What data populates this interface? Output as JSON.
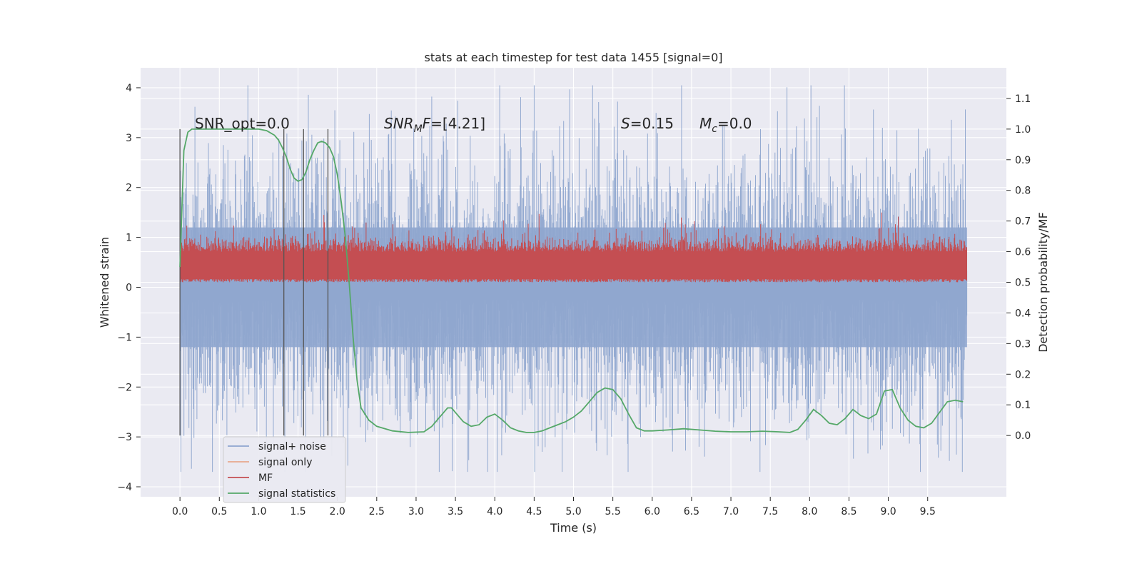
{
  "chart_data": {
    "type": "line",
    "title": "stats at each timestep for test data 1455 [signal=0]",
    "xlabel": "Time (s)",
    "ylabel": "Whitened strain",
    "ylabel_right": "Detection probability/MF",
    "xlim": [
      -0.5,
      10.5
    ],
    "ylim": [
      -4.2,
      4.4
    ],
    "ylim_right": [
      -0.2,
      1.2
    ],
    "x_ticks": [
      0.0,
      0.5,
      1.0,
      1.5,
      2.0,
      2.5,
      3.0,
      3.5,
      4.0,
      4.5,
      5.0,
      5.5,
      6.0,
      6.5,
      7.0,
      7.5,
      8.0,
      8.5,
      9.0,
      9.5
    ],
    "y_ticks": [
      -4,
      -3,
      -2,
      -1,
      0,
      1,
      2,
      3,
      4
    ],
    "y_ticks_right": [
      0.0,
      0.1,
      0.2,
      0.3,
      0.4,
      0.5,
      0.6,
      0.7,
      0.8,
      0.9,
      1.0,
      1.1
    ],
    "grid": true,
    "legend_position": "lower-left",
    "annotations": [
      "SNR_opt=0.0",
      "SNR_MF=[4.21]",
      "S=0.15",
      "M_c=0.0"
    ],
    "vertical_markers": [
      0.0,
      1.32,
      1.57,
      1.88
    ],
    "series": [
      {
        "name": "signal+ noise",
        "color": "#8fa6cf",
        "kind": "noise",
        "x_range": [
          0.0,
          10.0
        ],
        "y_range": [
          -3.7,
          4.05
        ]
      },
      {
        "name": "signal only",
        "color": "#e8a88c",
        "kind": "flat",
        "values": []
      },
      {
        "name": "MF",
        "color": "#c44e52",
        "kind": "band",
        "x_range": [
          0.0,
          10.0
        ],
        "y_range_right": [
          0.5,
          0.63
        ]
      },
      {
        "name": "signal statistics",
        "color": "#55a868",
        "x": [
          0.0,
          0.05,
          0.1,
          0.15,
          0.2,
          0.3,
          0.4,
          0.5,
          0.6,
          0.7,
          0.8,
          0.9,
          1.0,
          1.1,
          1.2,
          1.25,
          1.3,
          1.35,
          1.4,
          1.45,
          1.5,
          1.55,
          1.6,
          1.65,
          1.7,
          1.75,
          1.8,
          1.85,
          1.9,
          1.95,
          2.0,
          2.05,
          2.1,
          2.15,
          2.2,
          2.25,
          2.3,
          2.4,
          2.5,
          2.7,
          2.9,
          3.1,
          3.2,
          3.3,
          3.4,
          3.45,
          3.5,
          3.6,
          3.7,
          3.8,
          3.9,
          4.0,
          4.1,
          4.2,
          4.3,
          4.4,
          4.5,
          4.6,
          4.7,
          4.8,
          4.9,
          5.0,
          5.1,
          5.2,
          5.3,
          5.4,
          5.5,
          5.6,
          5.7,
          5.8,
          5.9,
          6.0,
          6.2,
          6.4,
          6.6,
          6.8,
          7.0,
          7.2,
          7.4,
          7.6,
          7.75,
          7.85,
          7.95,
          8.05,
          8.15,
          8.25,
          8.35,
          8.45,
          8.55,
          8.65,
          8.75,
          8.85,
          8.95,
          9.05,
          9.15,
          9.25,
          9.35,
          9.45,
          9.55,
          9.65,
          9.75,
          9.85,
          9.95
        ],
        "values": [
          0.55,
          0.93,
          0.99,
          1.0,
          1.0,
          1.0,
          1.0,
          1.0,
          1.0,
          1.0,
          1.0,
          1.0,
          1.0,
          0.995,
          0.98,
          0.965,
          0.94,
          0.91,
          0.87,
          0.84,
          0.83,
          0.835,
          0.86,
          0.9,
          0.93,
          0.955,
          0.96,
          0.955,
          0.94,
          0.91,
          0.85,
          0.76,
          0.65,
          0.5,
          0.32,
          0.18,
          0.09,
          0.05,
          0.03,
          0.015,
          0.01,
          0.012,
          0.03,
          0.06,
          0.09,
          0.09,
          0.075,
          0.045,
          0.03,
          0.035,
          0.06,
          0.07,
          0.05,
          0.025,
          0.015,
          0.01,
          0.01,
          0.015,
          0.025,
          0.035,
          0.045,
          0.06,
          0.08,
          0.11,
          0.14,
          0.155,
          0.15,
          0.12,
          0.07,
          0.025,
          0.015,
          0.015,
          0.018,
          0.022,
          0.018,
          0.014,
          0.012,
          0.012,
          0.014,
          0.012,
          0.01,
          0.02,
          0.05,
          0.085,
          0.065,
          0.04,
          0.035,
          0.055,
          0.085,
          0.065,
          0.055,
          0.07,
          0.145,
          0.15,
          0.09,
          0.05,
          0.03,
          0.025,
          0.04,
          0.075,
          0.11,
          0.115,
          0.11
        ]
      }
    ]
  }
}
